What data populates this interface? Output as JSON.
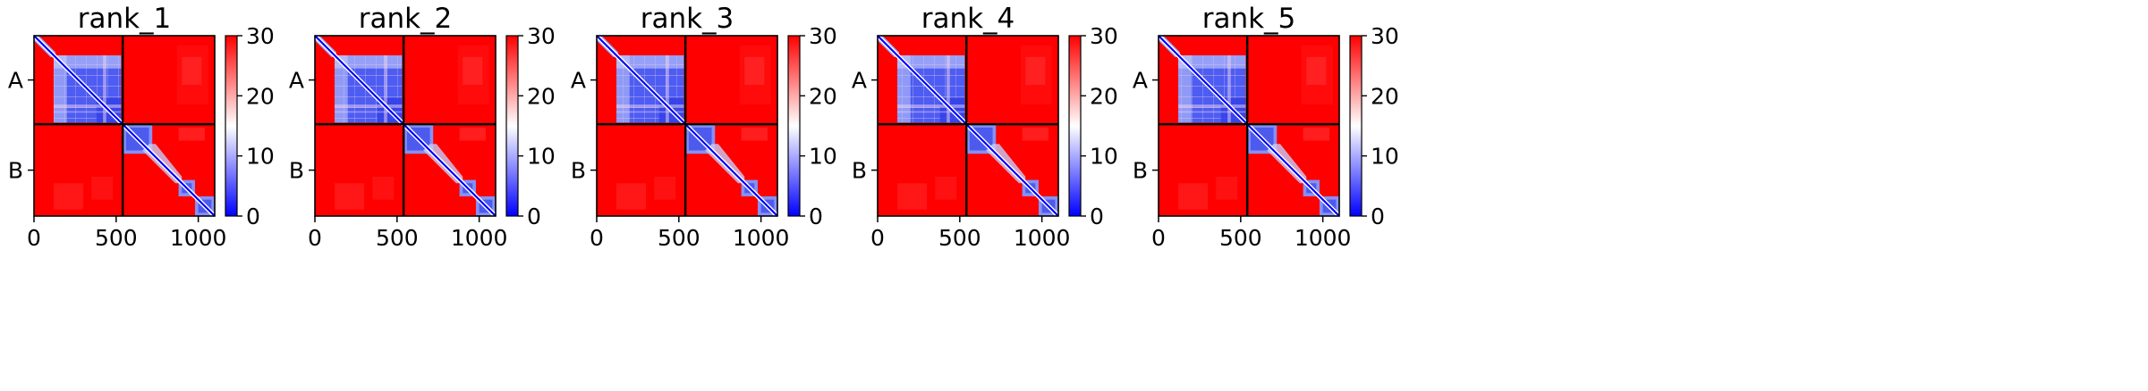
{
  "chart_data": [
    {
      "type": "heatmap",
      "title": "rank_1",
      "y_tick_labels": [
        "A",
        "B"
      ],
      "x_ticks": [
        0,
        500,
        1000
      ],
      "x_range": [
        0,
        1100
      ],
      "chain_boundary": 540,
      "colorbar": {
        "min": 0,
        "max": 30,
        "ticks": [
          0,
          10,
          20,
          30
        ],
        "colors": [
          "#0000ff",
          "#ffffff",
          "#ff0000"
        ]
      }
    },
    {
      "type": "heatmap",
      "title": "rank_2",
      "y_tick_labels": [
        "A",
        "B"
      ],
      "x_ticks": [
        0,
        500,
        1000
      ],
      "x_range": [
        0,
        1100
      ],
      "chain_boundary": 540,
      "colorbar": {
        "min": 0,
        "max": 30,
        "ticks": [
          0,
          10,
          20,
          30
        ],
        "colors": [
          "#0000ff",
          "#ffffff",
          "#ff0000"
        ]
      }
    },
    {
      "type": "heatmap",
      "title": "rank_3",
      "y_tick_labels": [
        "A",
        "B"
      ],
      "x_ticks": [
        0,
        500,
        1000
      ],
      "x_range": [
        0,
        1100
      ],
      "chain_boundary": 540,
      "colorbar": {
        "min": 0,
        "max": 30,
        "ticks": [
          0,
          10,
          20,
          30
        ],
        "colors": [
          "#0000ff",
          "#ffffff",
          "#ff0000"
        ]
      }
    },
    {
      "type": "heatmap",
      "title": "rank_4",
      "y_tick_labels": [
        "A",
        "B"
      ],
      "x_ticks": [
        0,
        500,
        1000
      ],
      "x_range": [
        0,
        1100
      ],
      "chain_boundary": 540,
      "colorbar": {
        "min": 0,
        "max": 30,
        "ticks": [
          0,
          10,
          20,
          30
        ],
        "colors": [
          "#0000ff",
          "#ffffff",
          "#ff0000"
        ]
      }
    },
    {
      "type": "heatmap",
      "title": "rank_5",
      "y_tick_labels": [
        "A",
        "B"
      ],
      "x_ticks": [
        0,
        500,
        1000
      ],
      "x_range": [
        0,
        1100
      ],
      "chain_boundary": 540,
      "colorbar": {
        "min": 0,
        "max": 30,
        "ticks": [
          0,
          10,
          20,
          30
        ],
        "colors": [
          "#0000ff",
          "#ffffff",
          "#ff0000"
        ]
      }
    }
  ]
}
